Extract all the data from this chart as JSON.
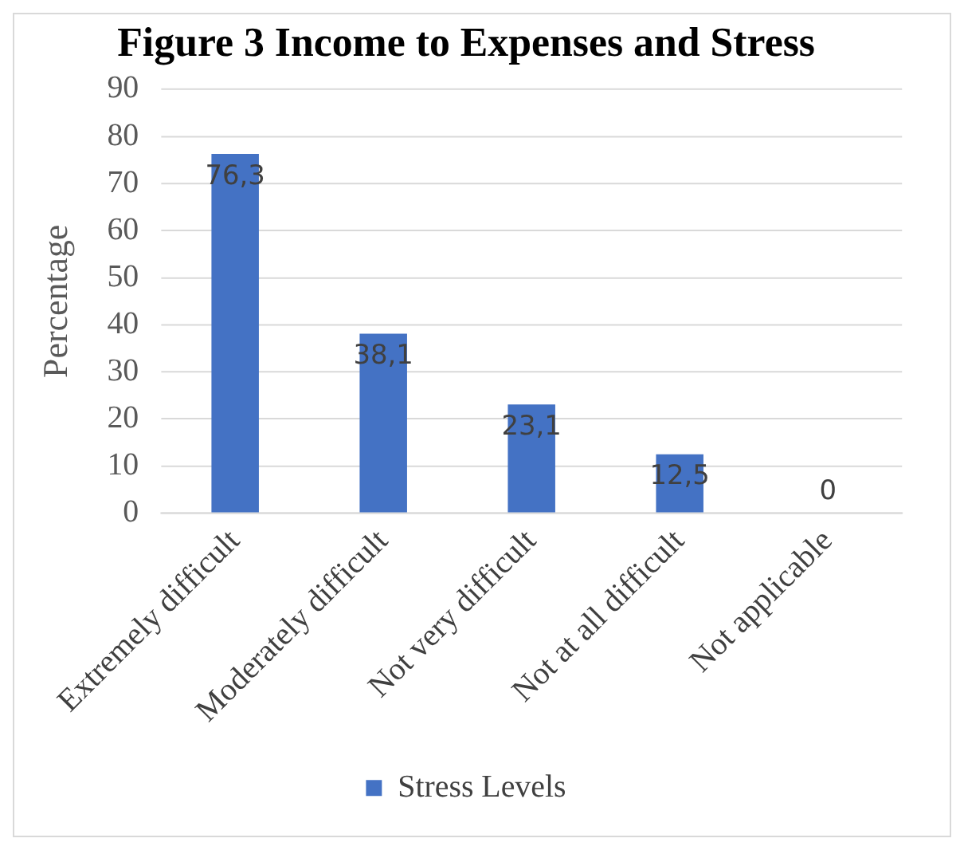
{
  "chart_data": {
    "type": "bar",
    "title": "Figure 3 Income to Expenses and Stress",
    "ylabel": "Percentage",
    "categories": [
      "Extremely difficult",
      "Moderately difficult",
      "Not very difficult",
      "Not at all difficult",
      "Not applicable"
    ],
    "series": [
      {
        "name": "Stress Levels",
        "color": "#4472c4",
        "values": [
          76.3,
          38.1,
          23.1,
          12.5,
          0
        ],
        "value_labels": [
          "76,3",
          "38,1",
          "23,1",
          "12,5",
          "0"
        ]
      }
    ],
    "ylim": [
      0,
      90
    ],
    "yticks": [
      0,
      10,
      20,
      30,
      40,
      50,
      60,
      70,
      80,
      90
    ],
    "grid": "y",
    "legend": "bottom"
  }
}
